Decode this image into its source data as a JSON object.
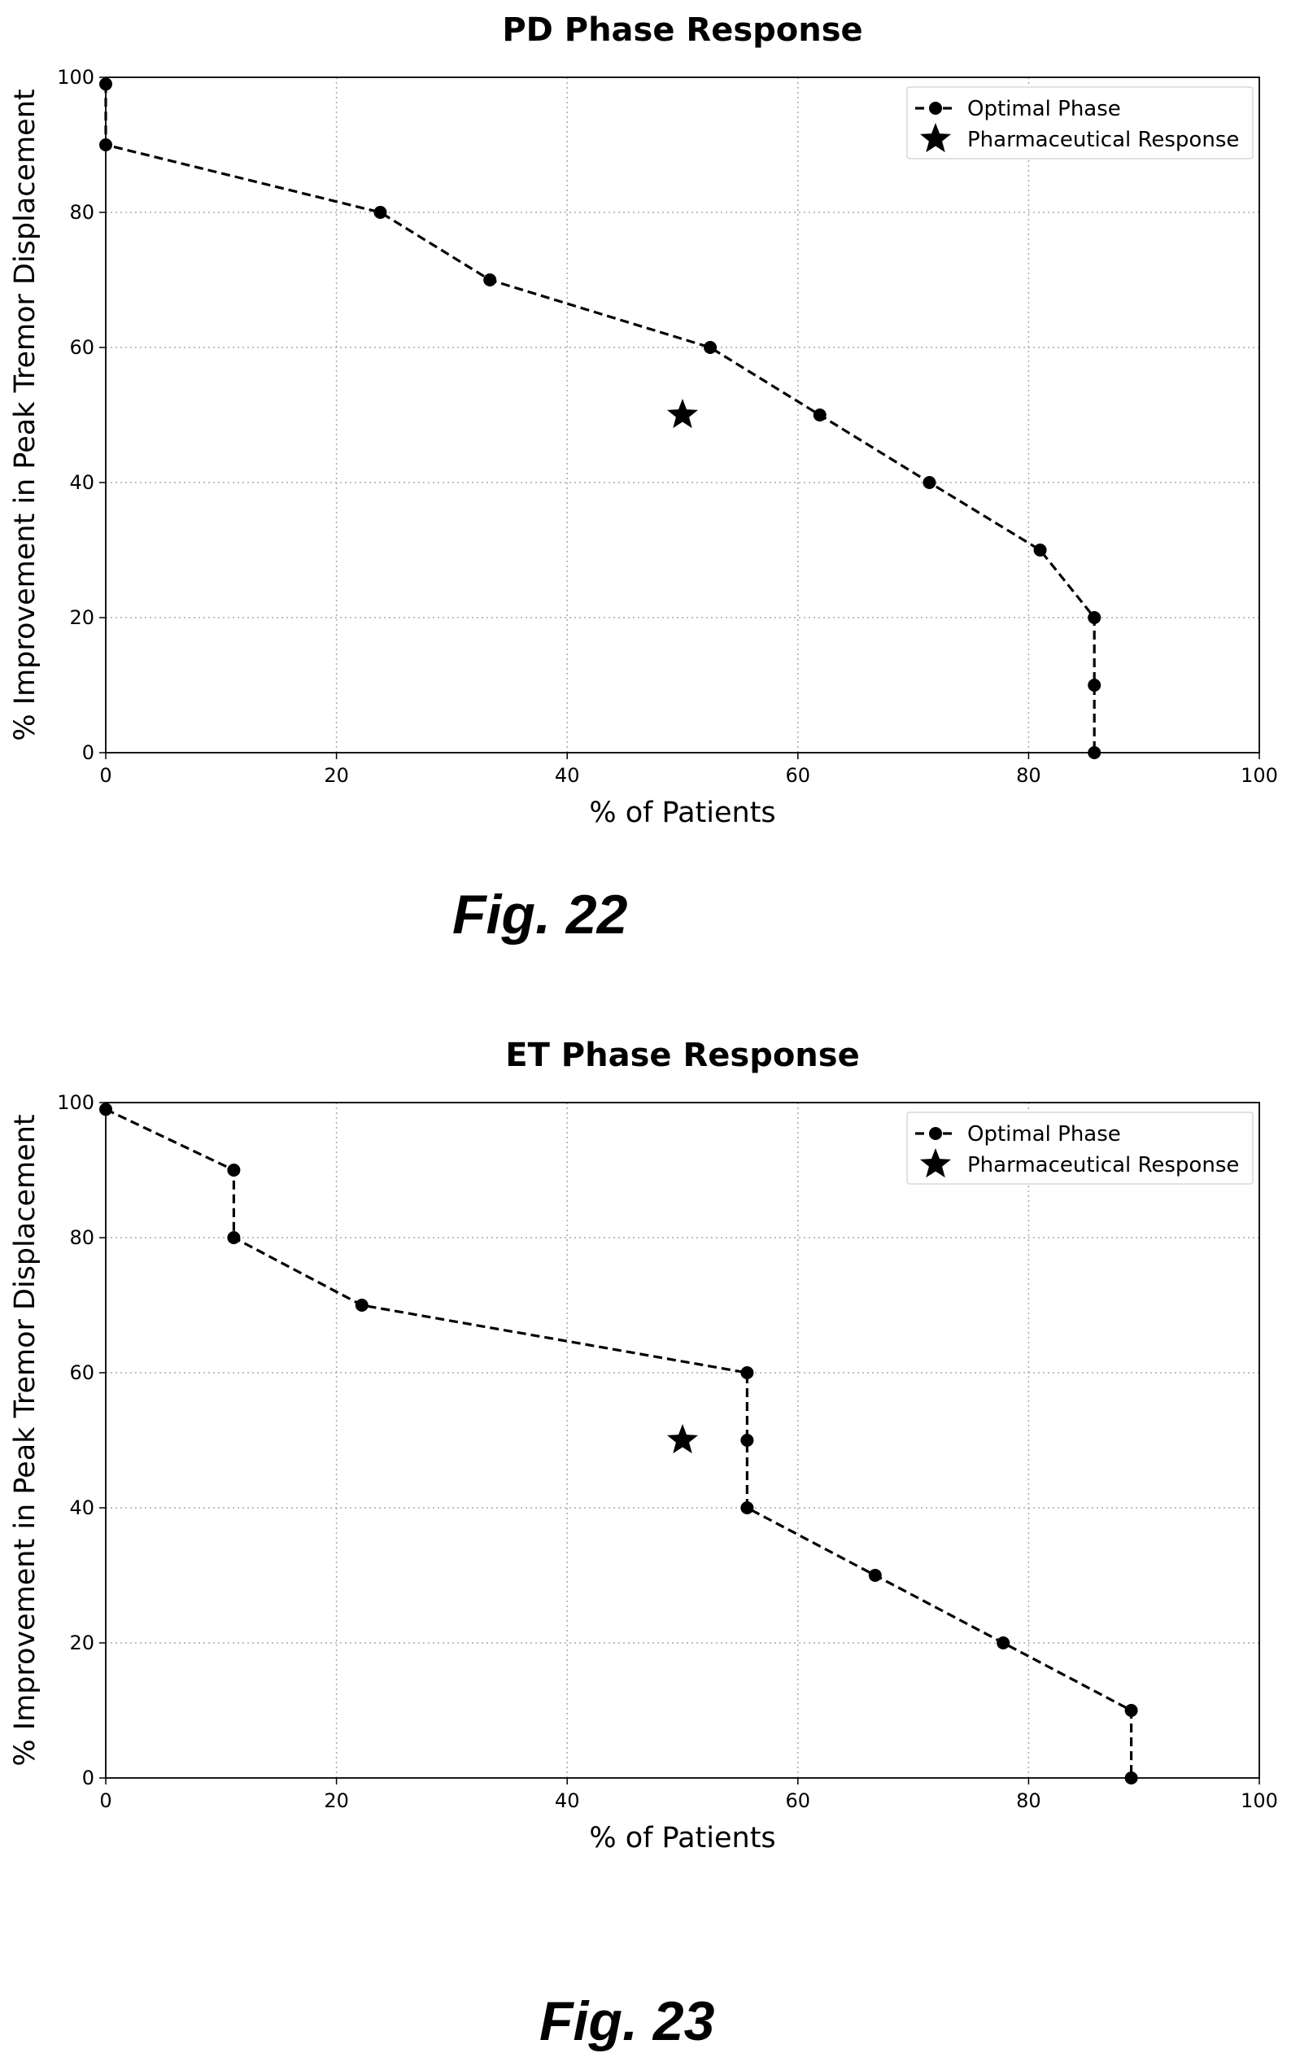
{
  "figures": [
    {
      "caption": "Fig. 22",
      "chart_data": {
        "type": "line",
        "title": "PD Phase Response",
        "xlabel": "% of Patients",
        "ylabel": "% Improvement in Peak Tremor Displacement",
        "xlim": [
          0,
          100
        ],
        "ylim": [
          0,
          100
        ],
        "xticks": [
          0,
          20,
          40,
          60,
          80,
          100
        ],
        "yticks": [
          0,
          20,
          40,
          60,
          80,
          100
        ],
        "grid": "dotted",
        "legend_position": "top-right",
        "series": [
          {
            "name": "Optimal Phase",
            "style": "dashed line with circle markers",
            "color": "#000000",
            "x": [
              0,
              0,
              23.8,
              33.3,
              52.4,
              61.9,
              71.4,
              81.0,
              85.7,
              85.7,
              85.7
            ],
            "y": [
              99,
              90,
              80,
              70,
              60,
              50,
              40,
              30,
              20,
              10,
              0
            ]
          },
          {
            "name": "Pharmaceutical Response",
            "style": "star marker",
            "color": "#000000",
            "x": [
              50
            ],
            "y": [
              50
            ]
          }
        ]
      }
    },
    {
      "caption": "Fig. 23",
      "chart_data": {
        "type": "line",
        "title": "ET Phase Response",
        "xlabel": "% of Patients",
        "ylabel": "% Improvement in Peak Tremor Displacement",
        "xlim": [
          0,
          100
        ],
        "ylim": [
          0,
          100
        ],
        "xticks": [
          0,
          20,
          40,
          60,
          80,
          100
        ],
        "yticks": [
          0,
          20,
          40,
          60,
          80,
          100
        ],
        "grid": "dotted",
        "legend_position": "top-right",
        "series": [
          {
            "name": "Optimal Phase",
            "style": "dashed line with circle markers",
            "color": "#000000",
            "x": [
              0,
              11.1,
              11.1,
              22.2,
              55.6,
              55.6,
              55.6,
              66.7,
              77.8,
              88.9,
              88.9
            ],
            "y": [
              99,
              90,
              80,
              70,
              60,
              50,
              40,
              30,
              20,
              10,
              0
            ]
          },
          {
            "name": "Pharmaceutical Response",
            "style": "star marker",
            "color": "#000000",
            "x": [
              50
            ],
            "y": [
              50
            ]
          }
        ]
      }
    }
  ]
}
